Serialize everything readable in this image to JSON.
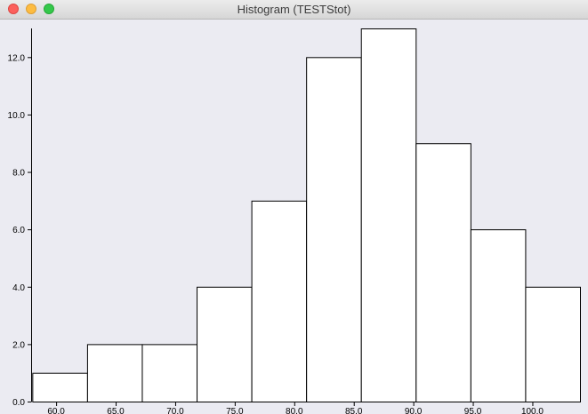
{
  "window": {
    "title": "Histogram (TESTStot)",
    "colors": {
      "background": "#ebebf2",
      "bar_fill": "#ffffff",
      "bar_stroke": "#000000"
    }
  },
  "chart_data": {
    "type": "bar",
    "title": "",
    "xlabel": "",
    "ylabel": "",
    "bins": [
      {
        "x0": 58.0,
        "x1": 62.6,
        "count": 1
      },
      {
        "x0": 62.6,
        "x1": 67.2,
        "count": 2
      },
      {
        "x0": 67.2,
        "x1": 71.8,
        "count": 2
      },
      {
        "x0": 71.8,
        "x1": 76.4,
        "count": 4
      },
      {
        "x0": 76.4,
        "x1": 81.0,
        "count": 7
      },
      {
        "x0": 81.0,
        "x1": 85.6,
        "count": 12
      },
      {
        "x0": 85.6,
        "x1": 90.2,
        "count": 13
      },
      {
        "x0": 90.2,
        "x1": 94.8,
        "count": 9
      },
      {
        "x0": 94.8,
        "x1": 99.4,
        "count": 6
      },
      {
        "x0": 99.4,
        "x1": 104.0,
        "count": 4
      }
    ],
    "xlim": [
      57.9,
      104.0
    ],
    "ylim": [
      0,
      13
    ],
    "x_ticks": [
      "60.0",
      "65.0",
      "70.0",
      "75.0",
      "80.0",
      "85.0",
      "90.0",
      "95.0",
      "100.0"
    ],
    "x_tick_values": [
      60,
      65,
      70,
      75,
      80,
      85,
      90,
      95,
      100
    ],
    "y_ticks": [
      "0.0",
      "2.0",
      "4.0",
      "6.0",
      "8.0",
      "10.0",
      "12.0"
    ],
    "y_tick_values": [
      0,
      2,
      4,
      6,
      8,
      10,
      12
    ],
    "grid": false,
    "legend": "none"
  }
}
